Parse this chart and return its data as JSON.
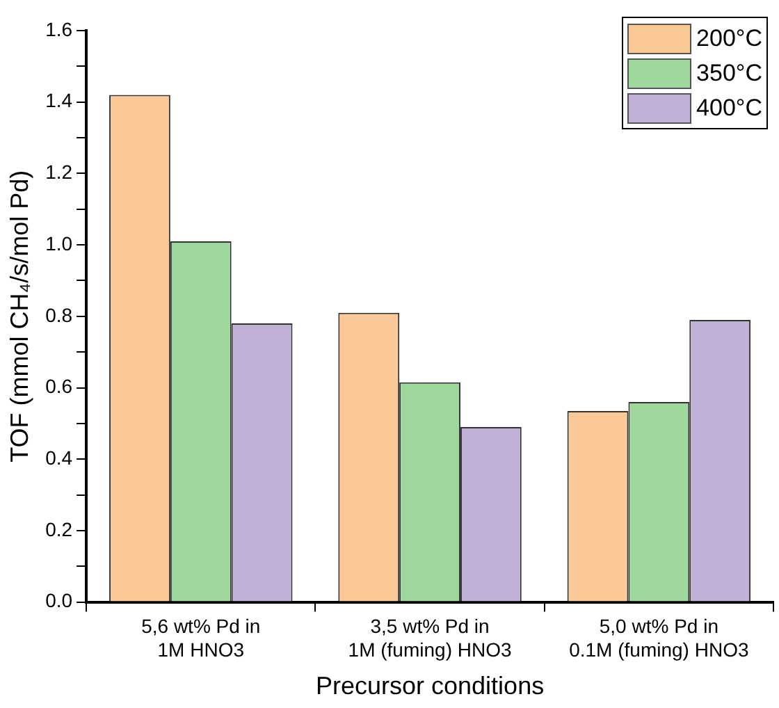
{
  "chart_data": {
    "type": "bar",
    "xlabel": "Precursor conditions",
    "ylabel": "TOF (mmol CH₄/s/mol Pd)",
    "categories": [
      "5,6 wt% Pd in\n1M HNO3",
      "3,5 wt% Pd in\n1M (fuming) HNO3",
      "5,0 wt% Pd in\n0.1M (fuming) HNO3"
    ],
    "series": [
      {
        "name": "200°C",
        "color": "#fbc898",
        "values": [
          1.42,
          0.81,
          0.535
        ]
      },
      {
        "name": "350°C",
        "color": "#9fd89c",
        "values": [
          1.01,
          0.615,
          0.56
        ]
      },
      {
        "name": "400°C",
        "color": "#c2b1d6",
        "values": [
          0.78,
          0.49,
          0.79
        ]
      }
    ],
    "ylim": [
      0,
      1.6
    ],
    "yticks": [
      {
        "value": 0,
        "label": "0.0"
      },
      {
        "value": 0.1,
        "label": null
      },
      {
        "value": 0.2,
        "label": "0.2"
      },
      {
        "value": 0.3,
        "label": null
      },
      {
        "value": 0.4,
        "label": "0.4"
      },
      {
        "value": 0.5,
        "label": null
      },
      {
        "value": 0.6,
        "label": "0.6"
      },
      {
        "value": 0.7,
        "label": null
      },
      {
        "value": 0.8,
        "label": "0.8"
      },
      {
        "value": 0.9,
        "label": null
      },
      {
        "value": 1,
        "label": "1.0"
      },
      {
        "value": 1.1,
        "label": null
      },
      {
        "value": 1.2,
        "label": "1.2"
      },
      {
        "value": 1.3,
        "label": null
      },
      {
        "value": 1.4,
        "label": "1.4"
      },
      {
        "value": 1.5,
        "label": null
      },
      {
        "value": 1.6,
        "label": "1.6"
      }
    ],
    "grid": false,
    "legend": "top right"
  }
}
